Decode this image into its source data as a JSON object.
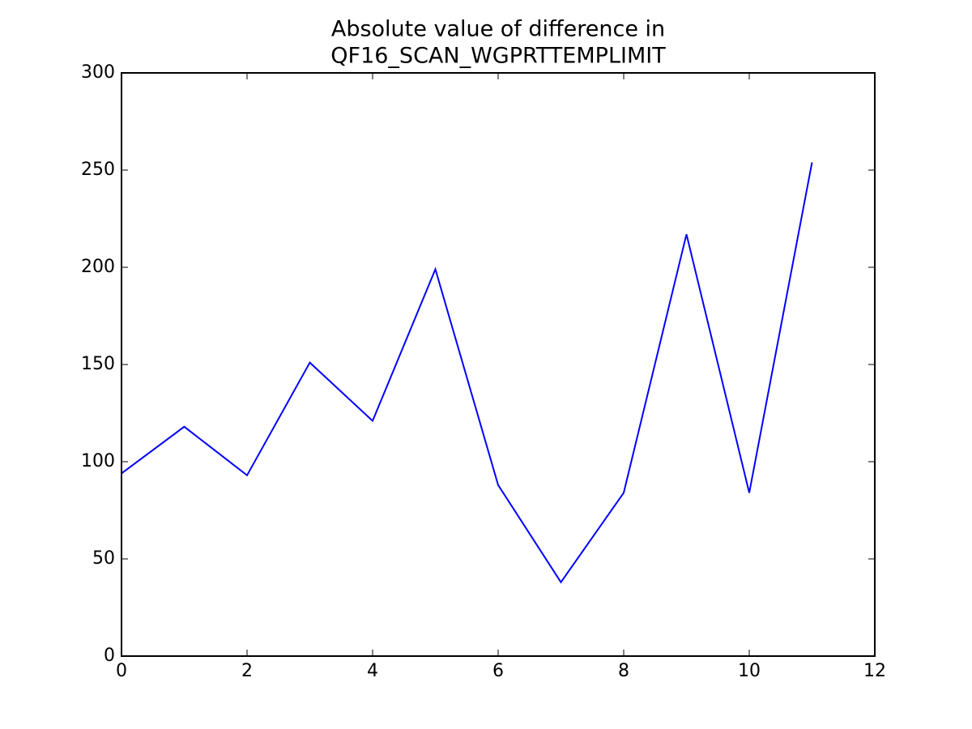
{
  "chart_data": {
    "type": "line",
    "title": [
      "Absolute value of difference in",
      "QF16_SCAN_WGPRTTEMPLIMIT"
    ],
    "x": [
      0,
      1,
      2,
      3,
      4,
      5,
      6,
      7,
      8,
      9,
      10,
      11
    ],
    "series": [
      {
        "color": "#0000ff",
        "values": [
          94,
          118,
          93,
          151,
          121,
          199,
          88,
          38,
          84,
          217,
          84,
          254
        ]
      }
    ],
    "xlim": [
      0,
      12
    ],
    "xticks": [
      0,
      2,
      4,
      6,
      8,
      10,
      12
    ],
    "ylim": [
      0,
      300
    ],
    "yticks": [
      0,
      50,
      100,
      150,
      200,
      250,
      300
    ],
    "grid": false
  }
}
